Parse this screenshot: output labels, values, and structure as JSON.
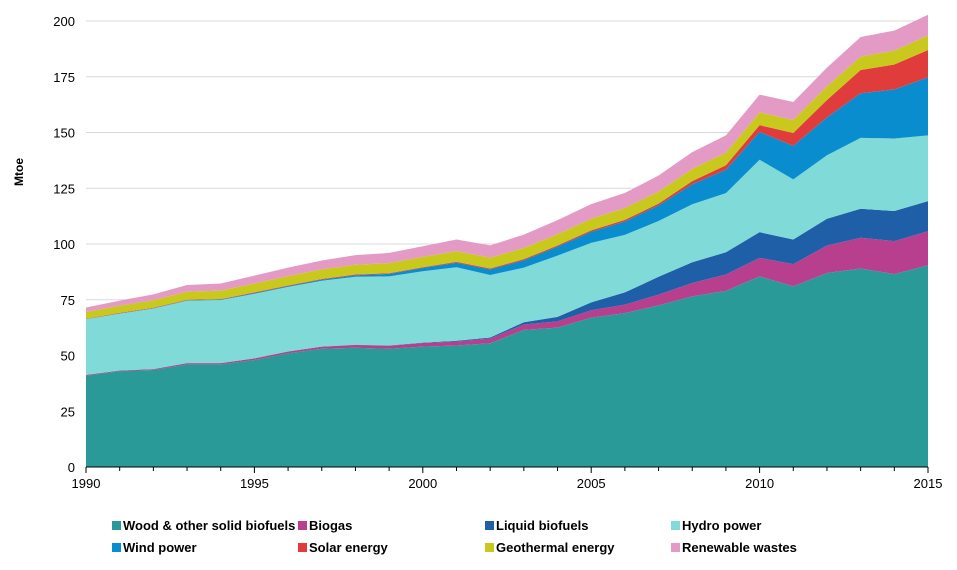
{
  "chart_data": {
    "type": "area",
    "stacked": true,
    "title": "",
    "xlabel": "",
    "ylabel": "Mtoe",
    "ylim": [
      0,
      200
    ],
    "xlim": [
      1990,
      2015
    ],
    "yticks": [
      0,
      25,
      50,
      75,
      100,
      125,
      150,
      175,
      200
    ],
    "xticks": [
      1990,
      1995,
      2000,
      2005,
      2010,
      2015
    ],
    "grid": "horizontal",
    "legend_position": "bottom",
    "x": [
      1990,
      1991,
      1992,
      1993,
      1994,
      1995,
      1996,
      1997,
      1998,
      1999,
      2000,
      2001,
      2002,
      2003,
      2004,
      2005,
      2006,
      2007,
      2008,
      2009,
      2010,
      2011,
      2012,
      2013,
      2014,
      2015
    ],
    "series": [
      {
        "name": "Wood & other solid biofuels",
        "color": "#2a9a98",
        "values": [
          41,
          43,
          43.5,
          46,
          46,
          48,
          51,
          53,
          53.5,
          53,
          54,
          54.5,
          55.5,
          61.5,
          62.5,
          67,
          69,
          72.5,
          76.5,
          79,
          85.5,
          81,
          87,
          89,
          86.5,
          90.5
        ]
      },
      {
        "name": "Biogas",
        "color": "#b83f8e",
        "values": [
          0.3,
          0.3,
          0.4,
          0.6,
          0.6,
          0.7,
          0.8,
          1.0,
          1.2,
          1.4,
          1.6,
          1.8,
          2.1,
          2.4,
          2.8,
          3.3,
          3.8,
          4.8,
          6.0,
          7.3,
          8.3,
          10.0,
          12.3,
          13.8,
          14.8,
          15.2
        ]
      },
      {
        "name": "Liquid biofuels",
        "color": "#1f5fa8",
        "values": [
          0,
          0,
          0,
          0,
          0,
          0,
          0,
          0,
          0.1,
          0.1,
          0.2,
          0.3,
          0.5,
          1.0,
          2.0,
          3.5,
          5.5,
          8.0,
          9.3,
          10.0,
          11.5,
          11.0,
          12.0,
          13.0,
          13.5,
          13.5
        ]
      },
      {
        "name": "Hydro power",
        "color": "#7fdad8",
        "values": [
          25,
          25.5,
          27.2,
          28,
          28.3,
          29,
          29,
          29.5,
          30.5,
          31,
          32,
          33,
          28,
          24.5,
          27.5,
          26.7,
          25.8,
          25,
          26,
          26.5,
          32.5,
          27,
          28.5,
          31.8,
          32.5,
          29.5
        ]
      },
      {
        "name": "Wind power",
        "color": "#0a8dcf",
        "values": [
          0,
          0.1,
          0.1,
          0.2,
          0.2,
          0.3,
          0.3,
          0.5,
          0.7,
          1.1,
          1.5,
          2,
          2.5,
          3.3,
          4,
          5,
          6,
          7,
          9,
          10.5,
          12.5,
          15,
          17,
          20,
          22,
          26
        ]
      },
      {
        "name": "Solar energy",
        "color": "#e03c3c",
        "values": [
          0.2,
          0.2,
          0.2,
          0.2,
          0.2,
          0.3,
          0.3,
          0.3,
          0.3,
          0.3,
          0.3,
          0.4,
          0.4,
          0.5,
          0.5,
          0.6,
          0.7,
          0.8,
          1.4,
          2.0,
          3.0,
          5.8,
          7.8,
          10.4,
          11.2,
          12.3
        ]
      },
      {
        "name": "Geothermal energy",
        "color": "#c9c81c",
        "values": [
          3,
          3.2,
          3.4,
          3.6,
          3.8,
          4,
          4.2,
          4.3,
          4.4,
          4.5,
          4.6,
          4.8,
          4.9,
          5.0,
          5.1,
          5.2,
          5.3,
          5.4,
          5.5,
          5.6,
          5.7,
          5.8,
          6.0,
          6.0,
          6.2,
          6.5
        ]
      },
      {
        "name": "Renewable wastes",
        "color": "#e39bc5",
        "values": [
          2.0,
          2.3,
          2.6,
          3.0,
          3.2,
          3.5,
          3.8,
          4.0,
          4.3,
          4.6,
          4.8,
          5.2,
          5.5,
          6.0,
          6.3,
          6.6,
          6.8,
          7.2,
          7.5,
          7.8,
          8.0,
          8.1,
          8.5,
          8.8,
          9.0,
          9.3
        ]
      }
    ]
  }
}
